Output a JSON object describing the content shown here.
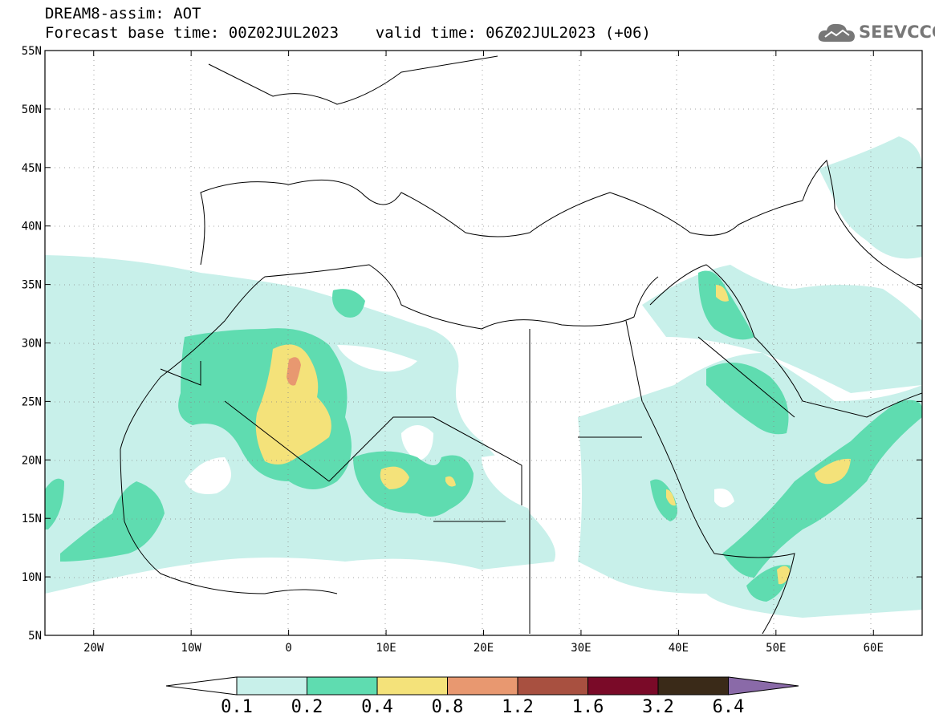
{
  "title": {
    "line1": "DREAM8-assim: AOT",
    "line2": "Forecast base time: 00Z02JUL2023    valid time: 06Z02JUL2023 (+06)"
  },
  "logo": {
    "text": "SEEVCCC",
    "icon": "cloud-icon"
  },
  "map": {
    "lon_range": [
      -25,
      65
    ],
    "lat_range": [
      5,
      55
    ],
    "lat_ticks": [
      {
        "value": 55,
        "label": "55N"
      },
      {
        "value": 50,
        "label": "50N"
      },
      {
        "value": 45,
        "label": "45N"
      },
      {
        "value": 40,
        "label": "40N"
      },
      {
        "value": 35,
        "label": "35N"
      },
      {
        "value": 30,
        "label": "30N"
      },
      {
        "value": 25,
        "label": "25N"
      },
      {
        "value": 20,
        "label": "20N"
      },
      {
        "value": 15,
        "label": "15N"
      },
      {
        "value": 10,
        "label": "10N"
      },
      {
        "value": 5,
        "label": "5N"
      }
    ],
    "lon_ticks": [
      {
        "value": -20,
        "label": "20W"
      },
      {
        "value": -10,
        "label": "10W"
      },
      {
        "value": 0,
        "label": "0"
      },
      {
        "value": 10,
        "label": "10E"
      },
      {
        "value": 20,
        "label": "20E"
      },
      {
        "value": 30,
        "label": "30E"
      },
      {
        "value": 40,
        "label": "40E"
      },
      {
        "value": 50,
        "label": "50E"
      },
      {
        "value": 60,
        "label": "60E"
      }
    ],
    "grid": "dotted"
  },
  "colorbar": {
    "levels": [
      "0.1",
      "0.2",
      "0.4",
      "0.8",
      "1.2",
      "1.6",
      "3.2",
      "6.4"
    ],
    "colors": [
      "#ffffff",
      "#c8f0ea",
      "#5fdcb0",
      "#f4e27a",
      "#e89870",
      "#a85040",
      "#7a0a28",
      "#3a2a18",
      "#8a6aa8"
    ]
  },
  "aot_regions": [
    {
      "level": "0.1-0.2",
      "color": "#c8f0ea",
      "region": "west-africa-band"
    },
    {
      "level": "0.2-0.4",
      "color": "#5fdcb0",
      "region": "algeria-mali"
    },
    {
      "level": "0.4-0.8",
      "color": "#f4e27a",
      "region": "algeria-core"
    },
    {
      "level": "0.8-1.2",
      "color": "#e89870",
      "region": "algeria-max"
    }
  ]
}
